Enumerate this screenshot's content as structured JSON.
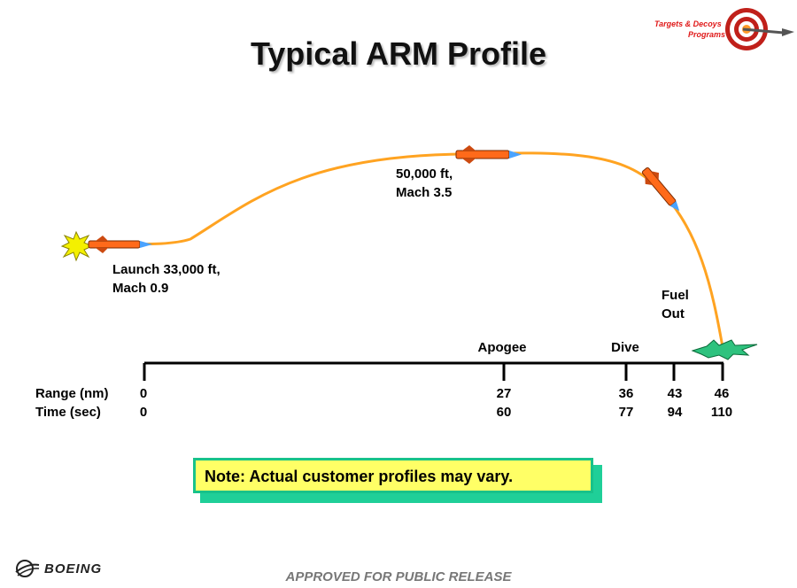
{
  "title": "Typical ARM Profile",
  "labels": {
    "launch_line1": "Launch 33,000 ft,",
    "launch_line2": "Mach 0.9",
    "apogee_alt_line1": "50,000 ft,",
    "apogee_alt_line2": "Mach 3.5",
    "fuel_line1": "Fuel",
    "fuel_line2": "Out",
    "apogee": "Apogee",
    "dive": "Dive"
  },
  "axis": {
    "range_label": "Range (nm)",
    "time_label": "Time (sec)",
    "ticks": [
      {
        "range": "0",
        "time": "0"
      },
      {
        "range": "27",
        "time": "60"
      },
      {
        "range": "36",
        "time": "77"
      },
      {
        "range": "43",
        "time": "94"
      },
      {
        "range": "46",
        "time": "110"
      }
    ]
  },
  "note": "Note:  Actual customer profiles may vary.",
  "footer": "APPROVED FOR PUBLIC RELEASE",
  "logo": {
    "company": "BOEING",
    "corner_logo_text_line1": "Targets & Decoys",
    "corner_logo_text_line2": "Programs"
  },
  "colors": {
    "trajectory": "#ffa321",
    "missile": "#ff6a1a",
    "note_bg": "#ffff66",
    "note_border": "#18c28a",
    "launch_flash": "#f4f000",
    "impact_flash": "#2ec27e"
  }
}
